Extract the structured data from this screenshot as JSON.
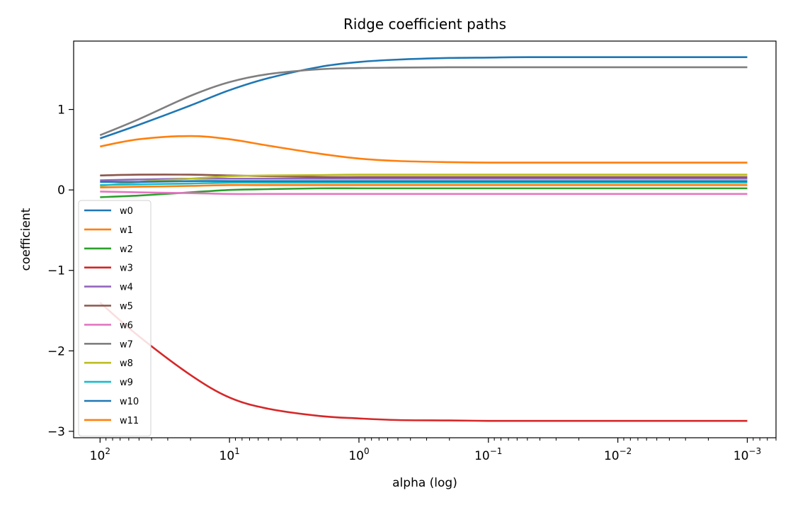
{
  "chart_data": {
    "type": "line",
    "title": "Ridge coefficient paths",
    "xlabel": "alpha (log)",
    "ylabel": "coefficient",
    "xscale": "log",
    "x_inverted": true,
    "xlim": [
      160,
      0.0006
    ],
    "ylim": [
      -3.08,
      1.85
    ],
    "grid": false,
    "legend": "center-left",
    "x_ticks": [
      {
        "value": 100,
        "base": "10",
        "exp": "2"
      },
      {
        "value": 10,
        "base": "10",
        "exp": "1"
      },
      {
        "value": 1,
        "base": "10",
        "exp": "0"
      },
      {
        "value": 0.1,
        "base": "10",
        "exp": "−1"
      },
      {
        "value": 0.01,
        "base": "10",
        "exp": "−2"
      },
      {
        "value": 0.001,
        "base": "10",
        "exp": "−3"
      }
    ],
    "y_ticks": [
      {
        "value": 1,
        "label": "1"
      },
      {
        "value": 0,
        "label": "0"
      },
      {
        "value": -1,
        "label": "−1"
      },
      {
        "value": -2,
        "label": "−2"
      },
      {
        "value": -3,
        "label": "−3"
      }
    ],
    "x": [
      100,
      50,
      20,
      10,
      5,
      2,
      1,
      0.5,
      0.2,
      0.1,
      0.05,
      0.01,
      0.001
    ],
    "series": [
      {
        "name": "w0",
        "color": "#1f77b4",
        "values": [
          0.64,
          0.81,
          1.05,
          1.24,
          1.39,
          1.53,
          1.59,
          1.62,
          1.64,
          1.645,
          1.65,
          1.65,
          1.65
        ]
      },
      {
        "name": "w1",
        "color": "#ff7f0e",
        "values": [
          0.54,
          0.63,
          0.67,
          0.63,
          0.55,
          0.45,
          0.39,
          0.36,
          0.345,
          0.34,
          0.34,
          0.34,
          0.34
        ]
      },
      {
        "name": "w2",
        "color": "#2ca02c",
        "values": [
          -0.09,
          -0.07,
          -0.03,
          0.0,
          0.01,
          0.02,
          0.02,
          0.02,
          0.02,
          0.02,
          0.02,
          0.02,
          0.02
        ]
      },
      {
        "name": "w3",
        "color": "#d62728",
        "values": [
          -1.4,
          -1.82,
          -2.3,
          -2.58,
          -2.72,
          -2.81,
          -2.84,
          -2.86,
          -2.865,
          -2.87,
          -2.87,
          -2.87,
          -2.87
        ]
      },
      {
        "name": "w4",
        "color": "#9467bd",
        "values": [
          0.12,
          0.13,
          0.14,
          0.14,
          0.14,
          0.14,
          0.14,
          0.14,
          0.14,
          0.14,
          0.14,
          0.14,
          0.14
        ]
      },
      {
        "name": "w5",
        "color": "#8c564b",
        "values": [
          0.18,
          0.19,
          0.19,
          0.18,
          0.17,
          0.16,
          0.16,
          0.16,
          0.16,
          0.16,
          0.16,
          0.16,
          0.16
        ]
      },
      {
        "name": "w6",
        "color": "#e377c2",
        "values": [
          -0.02,
          -0.03,
          -0.04,
          -0.05,
          -0.05,
          -0.05,
          -0.05,
          -0.05,
          -0.05,
          -0.05,
          -0.05,
          -0.05,
          -0.05
        ]
      },
      {
        "name": "w7",
        "color": "#7f7f7f",
        "values": [
          0.68,
          0.88,
          1.17,
          1.34,
          1.44,
          1.5,
          1.515,
          1.52,
          1.525,
          1.525,
          1.525,
          1.525,
          1.525
        ]
      },
      {
        "name": "w8",
        "color": "#bcbd22",
        "values": [
          0.05,
          0.1,
          0.14,
          0.17,
          0.18,
          0.185,
          0.19,
          0.19,
          0.19,
          0.19,
          0.19,
          0.19,
          0.19
        ]
      },
      {
        "name": "w9",
        "color": "#17becf",
        "values": [
          0.06,
          0.07,
          0.08,
          0.09,
          0.09,
          0.09,
          0.09,
          0.09,
          0.09,
          0.09,
          0.09,
          0.09,
          0.09
        ]
      },
      {
        "name": "w10",
        "color": "#1f77b4",
        "values": [
          0.1,
          0.1,
          0.11,
          0.11,
          0.11,
          0.11,
          0.11,
          0.11,
          0.11,
          0.11,
          0.11,
          0.11,
          0.11
        ]
      },
      {
        "name": "w11",
        "color": "#ff7f0e",
        "values": [
          0.03,
          0.04,
          0.05,
          0.06,
          0.06,
          0.06,
          0.06,
          0.06,
          0.06,
          0.06,
          0.06,
          0.06,
          0.06
        ]
      }
    ]
  }
}
